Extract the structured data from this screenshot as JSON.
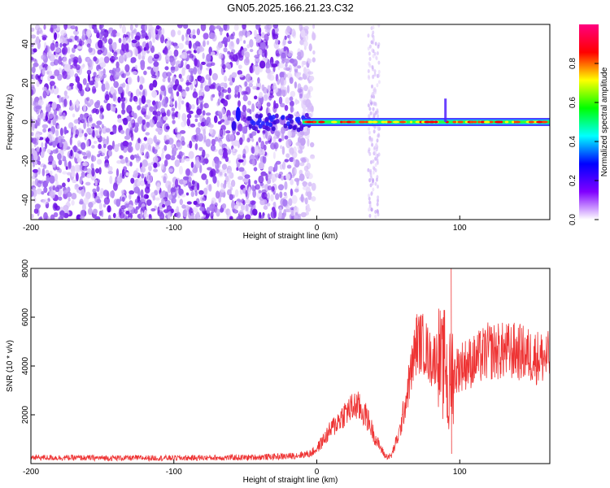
{
  "title": "GN05.2025.166.21.23.C32",
  "chart_data": [
    {
      "type": "heatmap",
      "xlabel": "Height of straight line (km)",
      "ylabel": "Frequency (Hz)",
      "xlim": [
        -200,
        163
      ],
      "ylim": [
        -50,
        50
      ],
      "xticks": [
        "-200",
        "-100",
        "0",
        "100"
      ],
      "xtick_values": [
        -200,
        -100,
        0,
        100
      ],
      "yticks": [
        "-40",
        "-20",
        "0",
        "20",
        "40"
      ],
      "ytick_values": [
        -40,
        -20,
        0,
        20,
        40
      ],
      "colorbar": {
        "label": "Normalized spectral amplitude",
        "range": [
          0,
          1
        ],
        "ticks": [
          "0.0",
          "0.2",
          "0.4",
          "0.6",
          "0.8"
        ],
        "tick_values": [
          0.0,
          0.2,
          0.4,
          0.6,
          0.8
        ],
        "colormap": [
          "#ffffff",
          "#8000ff",
          "#0000ff",
          "#00ffff",
          "#00ff00",
          "#ffff00",
          "#ff0000",
          "#ff0080"
        ]
      },
      "features": {
        "noise_region_x": [
          -200,
          -10
        ],
        "signal_band_x": [
          -10,
          163
        ],
        "signal_band_freq": 0,
        "noise_stripe_x": 40,
        "spikes_x": [
          -55,
          87,
          90
        ]
      }
    },
    {
      "type": "line",
      "xlabel": "Height of straight line (km)",
      "ylabel": "SNR (10 * v/v)",
      "xlim": [
        -200,
        163
      ],
      "ylim": [
        0,
        8000
      ],
      "xticks": [
        "-200",
        "-100",
        "0",
        "100"
      ],
      "xtick_values": [
        -200,
        -100,
        0,
        100
      ],
      "yticks": [
        "2000",
        "4000",
        "6000",
        "8000"
      ],
      "ytick_values": [
        2000,
        4000,
        6000,
        8000
      ],
      "color": "#ee3333",
      "series": [
        {
          "x": [
            -200,
            -150,
            -100,
            -50,
            -20,
            -5,
            0,
            10,
            20,
            28,
            35,
            42,
            48,
            52,
            58,
            62,
            66,
            70,
            75,
            80,
            85,
            88,
            90,
            92,
            94,
            96,
            100,
            110,
            120,
            130,
            140,
            150,
            163
          ],
          "values": [
            250,
            230,
            230,
            250,
            300,
            400,
            600,
            1400,
            2100,
            2400,
            1900,
            900,
            300,
            300,
            1300,
            2500,
            3800,
            5000,
            4900,
            4200,
            4500,
            3800,
            4500,
            2500,
            4000,
            3700,
            4000,
            4200,
            4600,
            4600,
            4600,
            4400,
            4300
          ]
        }
      ]
    }
  ]
}
